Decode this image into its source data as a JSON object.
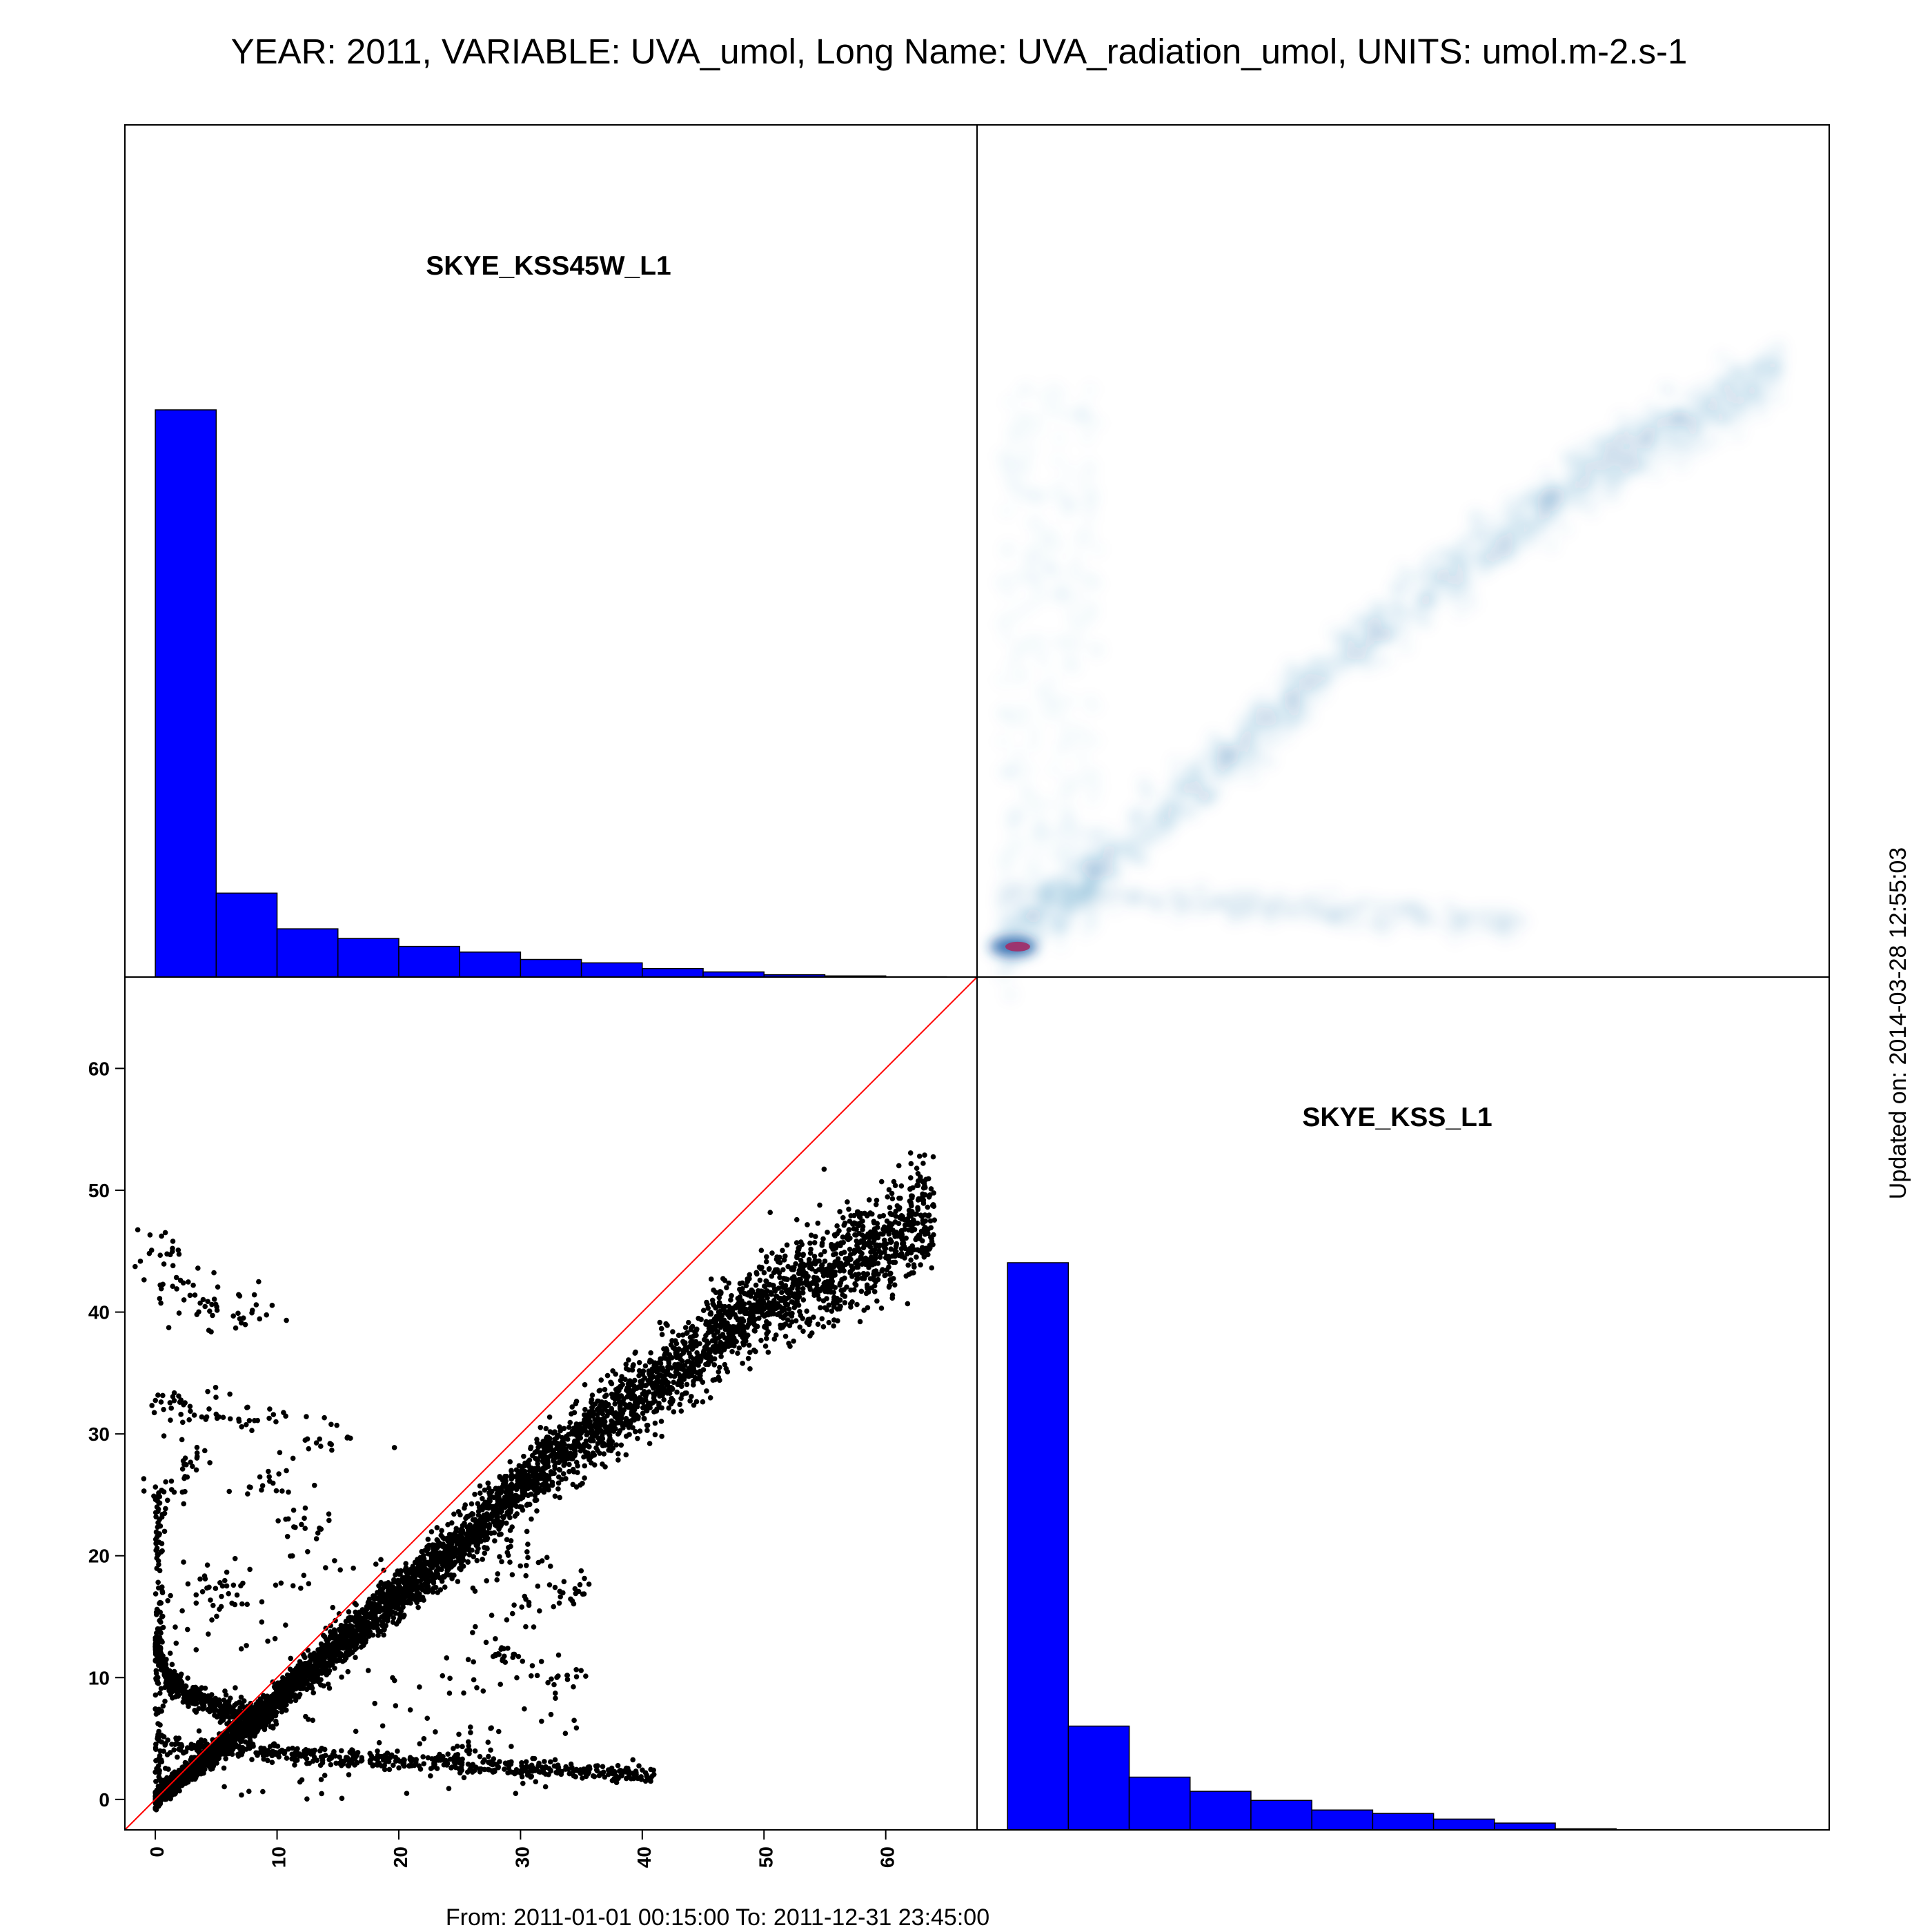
{
  "title": "YEAR: 2011, VARIABLE: UVA_umol, Long Name: UVA_radiation_umol, UNITS: umol.m-2.s-1",
  "footer": "From: 2011-01-01 00:15:00 To: 2011-12-31 23:45:00",
  "updated": "Updated on: 2014-03-28 12:55:03",
  "colors": {
    "hist_fill": "#0000ff",
    "points": "#000000",
    "identity_line": "#ff0000",
    "density": "#2a7fb8",
    "density_peak": "#a0306a"
  },
  "chart_data": [
    {
      "type": "bar",
      "panel": "top-left histogram",
      "label": "SKYE_KSS45W_L1",
      "bin_width": 5,
      "bin_starts": [
        0,
        5,
        10,
        15,
        20,
        25,
        30,
        35,
        40,
        45,
        50,
        55,
        60
      ],
      "relative_heights": [
        1.0,
        0.148,
        0.085,
        0.068,
        0.054,
        0.044,
        0.031,
        0.025,
        0.015,
        0.009,
        0.004,
        0.002,
        0.0005
      ]
    },
    {
      "type": "heatmap",
      "panel": "top-right smoothed density",
      "description_axes": "x: SKYE_KSS45W_L1, y: SKYE_KSS_L1",
      "xlim": [
        -2,
        68
      ],
      "ylim": [
        -2.5,
        67.5
      ],
      "main_band": [
        [
          0,
          0
        ],
        [
          10,
          8
        ],
        [
          20,
          16.5
        ],
        [
          30,
          25.5
        ],
        [
          40,
          33
        ],
        [
          50,
          40
        ],
        [
          60,
          45
        ],
        [
          64,
          48
        ]
      ],
      "peak": [
        1,
        0
      ]
    },
    {
      "type": "scatter",
      "panel": "bottom-left scatter",
      "xlim": [
        -2.5,
        67.5
      ],
      "ylim": [
        -2.5,
        67.5
      ],
      "xticks": [
        0,
        10,
        20,
        30,
        40,
        50,
        60
      ],
      "yticks": [
        0,
        10,
        20,
        30,
        40,
        50,
        60
      ],
      "identity_line": true,
      "main_band": [
        [
          0,
          0
        ],
        [
          5,
          4
        ],
        [
          10,
          8.2
        ],
        [
          15,
          12.6
        ],
        [
          20,
          16.8
        ],
        [
          25,
          21
        ],
        [
          30,
          25.7
        ],
        [
          35,
          29.8
        ],
        [
          40,
          33.3
        ],
        [
          45,
          37.2
        ],
        [
          50,
          40.8
        ],
        [
          55,
          43.2
        ],
        [
          60,
          45.5
        ],
        [
          64,
          48.5
        ]
      ],
      "low_branch": [
        [
          0,
          4.5
        ],
        [
          10,
          3.8
        ],
        [
          20,
          3.2
        ],
        [
          30,
          2.6
        ],
        [
          41,
          2.0
        ]
      ],
      "curve_branch": [
        [
          0.2,
          12.5
        ],
        [
          1,
          10
        ],
        [
          3,
          8.5
        ],
        [
          6,
          7.2
        ],
        [
          9,
          6.6
        ]
      ],
      "cluster_points": [
        [
          0.5,
          45
        ],
        [
          2,
          42
        ],
        [
          4,
          40.5
        ],
        [
          7.5,
          40
        ],
        [
          1,
          32
        ],
        [
          4,
          32
        ],
        [
          8,
          31
        ],
        [
          3,
          28
        ],
        [
          1,
          25
        ],
        [
          5,
          17
        ],
        [
          14.5,
          29.7
        ],
        [
          24,
          21
        ],
        [
          30,
          20
        ],
        [
          34,
          17
        ],
        [
          28,
          12
        ],
        [
          33,
          9.5
        ],
        [
          25,
          4
        ],
        [
          10,
          26
        ],
        [
          12,
          22.5
        ]
      ]
    },
    {
      "type": "bar",
      "panel": "bottom-right histogram",
      "label": "SKYE_KSS_L1",
      "bin_width": 5,
      "bin_starts": [
        0,
        5,
        10,
        15,
        20,
        25,
        30,
        35,
        40,
        45
      ],
      "relative_heights": [
        1.0,
        0.183,
        0.093,
        0.068,
        0.052,
        0.035,
        0.029,
        0.019,
        0.012,
        0.002
      ]
    }
  ]
}
